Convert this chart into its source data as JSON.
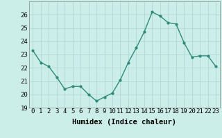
{
  "title": "",
  "xlabel": "Humidex (Indice chaleur)",
  "ylabel": "",
  "x": [
    0,
    1,
    2,
    3,
    4,
    5,
    6,
    7,
    8,
    9,
    10,
    11,
    12,
    13,
    14,
    15,
    16,
    17,
    18,
    19,
    20,
    21,
    22,
    23
  ],
  "y": [
    23.3,
    22.4,
    22.1,
    21.3,
    20.4,
    20.6,
    20.6,
    20.0,
    19.5,
    19.8,
    20.1,
    21.1,
    22.4,
    23.5,
    24.7,
    26.2,
    25.9,
    25.4,
    25.3,
    23.9,
    22.8,
    22.9,
    22.9,
    22.1
  ],
  "ylim": [
    19,
    27
  ],
  "yticks": [
    19,
    20,
    21,
    22,
    23,
    24,
    25,
    26
  ],
  "xticks": [
    0,
    1,
    2,
    3,
    4,
    5,
    6,
    7,
    8,
    9,
    10,
    11,
    12,
    13,
    14,
    15,
    16,
    17,
    18,
    19,
    20,
    21,
    22,
    23
  ],
  "line_color": "#2e8b7a",
  "marker": "o",
  "marker_size": 2.0,
  "line_width": 1.0,
  "bg_color": "#cceee8",
  "grid_color": "#aad4ce",
  "label_fontsize": 7.5,
  "tick_fontsize": 6.5
}
